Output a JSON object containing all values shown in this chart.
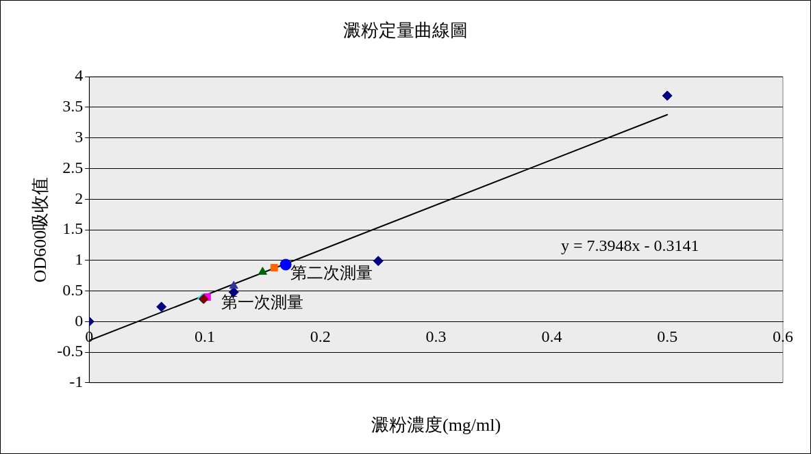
{
  "chart_data": {
    "type": "scatter",
    "title": "澱粉定量曲線圖",
    "xlabel": "澱粉濃度(mg/ml)",
    "ylabel": "OD600吸收值",
    "xlim": [
      0,
      0.6
    ],
    "xticks": [
      0,
      0.1,
      0.2,
      0.3,
      0.4,
      0.5,
      0.6
    ],
    "ylim": [
      -1,
      4
    ],
    "yticks": [
      -1,
      -0.5,
      0,
      0.5,
      1,
      1.5,
      2,
      2.5,
      3,
      3.5,
      4
    ],
    "grid": "y",
    "legend": false,
    "series": [
      {
        "color": "#000080",
        "marker": "diamond",
        "x": [
          0,
          0.0625,
          0.125,
          0.25,
          0.5
        ],
        "values": [
          0,
          0.24,
          0.48,
          0.99,
          3.69
        ]
      },
      {
        "color": "#ff00ff",
        "marker": "square",
        "x": [
          0.102
        ],
        "values": [
          0.4
        ]
      },
      {
        "color": "#00ffff",
        "marker": "diamond",
        "x": [
          0.098
        ],
        "values": [
          0.38
        ]
      },
      {
        "color": "#800000",
        "marker": "diamond",
        "x": [
          0.099
        ],
        "values": [
          0.37
        ]
      },
      {
        "color": "#333399",
        "marker": "triangle",
        "x": [
          0.125
        ],
        "values": [
          0.58
        ]
      },
      {
        "color": "#006400",
        "marker": "triangle",
        "x": [
          0.15
        ],
        "values": [
          0.81
        ]
      },
      {
        "color": "#ff6600",
        "marker": "square",
        "x": [
          0.16
        ],
        "values": [
          0.88
        ]
      },
      {
        "color": "#0000ff",
        "marker": "circle",
        "x": [
          0.17
        ],
        "values": [
          0.93
        ]
      },
      {
        "type": "line",
        "color": "#000000",
        "marker": "none",
        "x": [
          0,
          0.5
        ],
        "values": [
          -0.31,
          3.38
        ]
      }
    ],
    "annotations": [
      "第一次測量",
      "第二次測量",
      "y = 7.3948x - 0.3141"
    ]
  }
}
